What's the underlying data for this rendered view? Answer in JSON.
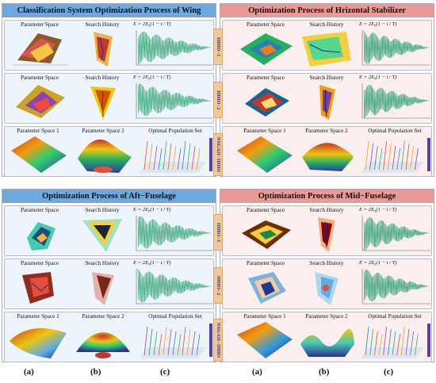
{
  "panels": {
    "wing": {
      "title": "Classification System Optimization Process of Wing",
      "rows": [
        {
          "labels": [
            "Parameter Space",
            "Search History"
          ],
          "equation": "E = 2E₀(1 − t / T)"
        },
        {
          "labels": [
            "Parameter Space",
            "Search History"
          ],
          "equation": "E = 2E₀(1 − t / T)"
        },
        {
          "labels": [
            "Parameter Space 1",
            "Parameter Space 2",
            "Optimal Population Set"
          ]
        }
      ]
    },
    "stabilizer": {
      "title": "Optimization Process of Hrizontal Stabilizer",
      "rows": [
        {
          "labels": [
            "Parameter Space",
            "Search History"
          ],
          "equation": "E = 2E₀(1 − t / T)"
        },
        {
          "labels": [
            "Parameter Space",
            "Search History"
          ],
          "equation": "E = 2E₀(1 − t / T)"
        },
        {
          "labels": [
            "Parameter Space 1",
            "Parameter Space 2",
            "Optimal Population Set"
          ]
        }
      ]
    },
    "aft": {
      "title": "Optimization Process of Aft−Fuselage",
      "rows": [
        {
          "labels": [
            "Parameter Space",
            "Search History"
          ],
          "equation": "E = 2E₀(1 − t / T)"
        },
        {
          "labels": [
            "Parameter Space",
            "Search History"
          ],
          "equation": "E = 2E₀(1 − t / T)"
        },
        {
          "labels": [
            "Parameter Space 1",
            "Parameter Space 2",
            "Optimal Population Set"
          ]
        }
      ]
    },
    "mid": {
      "title": "Optimization Process of Mid−Fuselage",
      "rows": [
        {
          "labels": [
            "Parameter Space",
            "Search History"
          ],
          "equation": "E = 2E₀(1 − t / T)"
        },
        {
          "labels": [
            "Parameter Space",
            "Search History"
          ],
          "equation": "E = 2E₀(1 − t / T)"
        },
        {
          "labels": [
            "Parameter Space 1",
            "Parameter Space 2",
            "Optimal Population Set"
          ]
        }
      ]
    }
  },
  "tags": [
    "IHHO−1",
    "IHHO−2",
    "NSGAII−IHHO"
  ],
  "footer": [
    "(a)",
    "(b)",
    "(c)",
    "(a)",
    "(b)",
    "(c)"
  ],
  "colors": {
    "header_blue": "#6fa8dc",
    "header_pink": "#ea9999",
    "tag_fill": "#f4c99a",
    "convergence_line": "#3aa57a"
  }
}
